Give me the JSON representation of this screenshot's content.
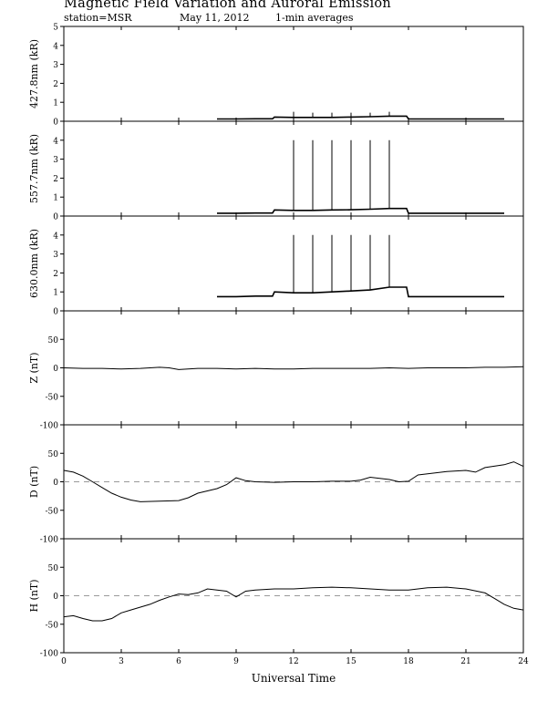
{
  "header": {
    "title": "Magnetic Field Variation and Auroral Emission",
    "station": "station=MSR",
    "date": "May 11, 2012",
    "averaging": "1-min averages"
  },
  "chart_data": [
    {
      "type": "line",
      "ylabel": "427.8nm (kR)",
      "ylim": [
        0,
        5
      ],
      "yticks": [
        0,
        1,
        2,
        3,
        4,
        5
      ],
      "xlim": [
        0,
        24
      ],
      "series": [
        {
          "x": [
            8,
            9,
            10,
            10.9,
            11,
            12,
            13,
            14,
            15,
            16,
            17,
            17.9,
            18,
            19,
            20,
            21,
            22,
            23
          ],
          "y": [
            0.12,
            0.12,
            0.13,
            0.13,
            0.22,
            0.2,
            0.2,
            0.2,
            0.22,
            0.24,
            0.27,
            0.27,
            0.12,
            0.12,
            0.12,
            0.12,
            0.12,
            0.12
          ]
        }
      ],
      "spikes": [
        {
          "x": 12,
          "y": 0.5
        },
        {
          "x": 13,
          "y": 0.45
        },
        {
          "x": 14,
          "y": 0.45
        },
        {
          "x": 15,
          "y": 0.45
        },
        {
          "x": 16,
          "y": 0.45
        },
        {
          "x": 17,
          "y": 0.5
        }
      ]
    },
    {
      "type": "line",
      "ylabel": "557.7nm (kR)",
      "ylim": [
        0,
        5
      ],
      "yticks": [
        0,
        1,
        2,
        3,
        4
      ],
      "xlim": [
        0,
        24
      ],
      "series": [
        {
          "x": [
            8,
            9,
            10,
            10.9,
            11,
            12,
            13,
            14,
            15,
            16,
            17,
            17.9,
            18,
            19,
            20,
            21,
            22,
            23
          ],
          "y": [
            0.15,
            0.15,
            0.16,
            0.16,
            0.32,
            0.3,
            0.3,
            0.32,
            0.33,
            0.36,
            0.4,
            0.4,
            0.15,
            0.15,
            0.15,
            0.15,
            0.15,
            0.15
          ]
        }
      ],
      "spikes": [
        {
          "x": 12,
          "y": 4.0
        },
        {
          "x": 13,
          "y": 4.0
        },
        {
          "x": 14,
          "y": 4.0
        },
        {
          "x": 15,
          "y": 4.0
        },
        {
          "x": 16,
          "y": 4.0
        },
        {
          "x": 17,
          "y": 4.0
        }
      ]
    },
    {
      "type": "line",
      "ylabel": "630.0nm (kR)",
      "ylim": [
        0,
        5
      ],
      "yticks": [
        0,
        1,
        2,
        3,
        4
      ],
      "xlim": [
        0,
        24
      ],
      "series": [
        {
          "x": [
            8,
            9,
            10,
            10.9,
            11,
            12,
            13,
            14,
            15,
            16,
            17,
            17.9,
            18,
            19,
            20,
            21,
            22,
            23
          ],
          "y": [
            0.75,
            0.75,
            0.78,
            0.78,
            1.0,
            0.95,
            0.95,
            1.0,
            1.05,
            1.1,
            1.25,
            1.25,
            0.75,
            0.75,
            0.75,
            0.75,
            0.75,
            0.75
          ]
        }
      ],
      "spikes": [
        {
          "x": 12,
          "y": 4.0
        },
        {
          "x": 13,
          "y": 4.0
        },
        {
          "x": 14,
          "y": 4.0
        },
        {
          "x": 15,
          "y": 4.0
        },
        {
          "x": 16,
          "y": 4.0
        },
        {
          "x": 17,
          "y": 4.0
        }
      ]
    },
    {
      "type": "line",
      "ylabel": "Z (nT)",
      "ylim": [
        -100,
        100
      ],
      "yticks": [
        -100,
        -50,
        0,
        50
      ],
      "xlim": [
        0,
        24
      ],
      "series": [
        {
          "x": [
            0,
            1,
            2,
            3,
            4,
            5,
            5.5,
            6,
            7,
            8,
            9,
            10,
            11,
            12,
            13,
            14,
            15,
            16,
            17,
            18,
            19,
            20,
            21,
            22,
            23,
            24
          ],
          "y": [
            0,
            -1,
            -1,
            -2,
            -1,
            1,
            0,
            -3,
            -1,
            -1,
            -2,
            -1,
            -2,
            -2,
            -1,
            -1,
            -1,
            -1,
            0,
            -1,
            0,
            0,
            0,
            1,
            1,
            2
          ]
        }
      ]
    },
    {
      "type": "line",
      "ylabel": "D (nT)",
      "ylim": [
        -100,
        100
      ],
      "yticks": [
        -100,
        -50,
        0,
        50
      ],
      "xlim": [
        0,
        24
      ],
      "baseline": 0,
      "series": [
        {
          "x": [
            0,
            0.5,
            1,
            1.5,
            2,
            2.5,
            3,
            3.5,
            4,
            5,
            6,
            6.5,
            7,
            8,
            8.5,
            9,
            9.5,
            10,
            11,
            12,
            13,
            14,
            15,
            15.5,
            16,
            17,
            17.5,
            18,
            18.5,
            19,
            20,
            21,
            21.5,
            22,
            23,
            23.5,
            24
          ],
          "y": [
            20,
            17,
            10,
            0,
            -10,
            -20,
            -27,
            -32,
            -35,
            -34,
            -33,
            -28,
            -20,
            -12,
            -5,
            7,
            2,
            0,
            -1,
            0,
            0,
            1,
            1,
            3,
            8,
            4,
            0,
            1,
            12,
            14,
            18,
            20,
            17,
            25,
            30,
            35,
            27
          ]
        }
      ]
    },
    {
      "type": "line",
      "ylabel": "H (nT)",
      "ylim": [
        -100,
        100
      ],
      "yticks": [
        -100,
        -50,
        0,
        50
      ],
      "xlim": [
        0,
        24
      ],
      "xticks": [
        0,
        3,
        6,
        9,
        12,
        15,
        18,
        21,
        24
      ],
      "xlabel": "Universal Time",
      "baseline": 0,
      "series": [
        {
          "x": [
            0,
            0.5,
            1,
            1.5,
            2,
            2.5,
            3,
            3.5,
            4,
            4.5,
            5,
            5.5,
            6,
            6.5,
            7,
            7.5,
            8,
            8.5,
            9,
            9.5,
            10,
            11,
            12,
            13,
            14,
            15,
            16,
            17,
            18,
            19,
            20,
            21,
            22,
            22.5,
            23,
            23.5,
            24
          ],
          "y": [
            -37,
            -35,
            -40,
            -44,
            -44,
            -40,
            -30,
            -25,
            -20,
            -15,
            -8,
            -2,
            3,
            2,
            5,
            12,
            10,
            8,
            -2,
            8,
            10,
            12,
            12,
            14,
            15,
            14,
            12,
            10,
            10,
            14,
            15,
            12,
            5,
            -5,
            -15,
            -22,
            -25
          ]
        }
      ]
    }
  ]
}
